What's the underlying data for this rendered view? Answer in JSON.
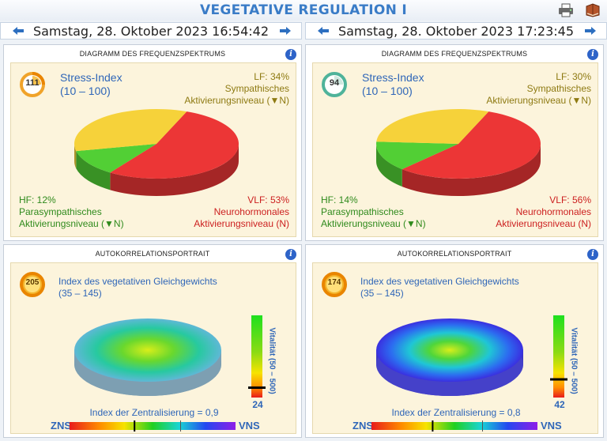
{
  "app": {
    "title": "VEGETATIVE REGULATION I",
    "printer_icon": "printer-icon",
    "book_icon": "book-icon"
  },
  "sessions": [
    {
      "datetime": "Samstag, 28. Oktober 2023 16:54:42"
    },
    {
      "datetime": "Samstag, 28. Oktober 2023 17:23:45"
    }
  ],
  "spectrum": [
    {
      "panel_title": "DIAGRAMM DES FREQUENZSPEKTRUMS",
      "stress_value": "111",
      "stress_label": "Stress-Index",
      "stress_range": "(10 – 100)",
      "lf_pct": "LF: 34%",
      "lf_l1": "Sympathisches",
      "lf_l2": "Aktivierungsniveau (▼N)",
      "hf_pct": "HF: 12%",
      "hf_l1": "Parasympathisches",
      "hf_l2": "Aktivierungsniveau (▼N)",
      "vlf_pct": "VLF: 53%",
      "vlf_l1": "Neurohormonales",
      "vlf_l2": "Aktivierungsniveau (N)",
      "chart_data": {
        "type": "pie",
        "categories": [
          "LF",
          "HF",
          "VLF"
        ],
        "values": [
          34,
          12,
          53
        ],
        "colors": [
          "#f6d23a",
          "#52cf35",
          "#ec3636"
        ]
      }
    },
    {
      "panel_title": "DIAGRAMM DES FREQUENZSPEKTRUMS",
      "stress_value": "94",
      "stress_label": "Stress-Index",
      "stress_range": "(10 – 100)",
      "lf_pct": "LF: 30%",
      "lf_l1": "Sympathisches",
      "lf_l2": "Aktivierungsniveau (▼N)",
      "hf_pct": "HF: 14%",
      "hf_l1": "Parasympathisches",
      "hf_l2": "Aktivierungsniveau (▼N)",
      "vlf_pct": "VLF: 56%",
      "vlf_l1": "Neurohormonales",
      "vlf_l2": "Aktivierungsniveau (N)",
      "chart_data": {
        "type": "pie",
        "categories": [
          "LF",
          "HF",
          "VLF"
        ],
        "values": [
          30,
          14,
          56
        ],
        "colors": [
          "#f6d23a",
          "#52cf35",
          "#ec3636"
        ]
      }
    }
  ],
  "autocorrelation": [
    {
      "panel_title": "AUTOKORRELATIONSPORTRAIT",
      "index_value": "205",
      "index_label": "Index des vegetativen Gleichgewichts",
      "index_range": "(35 – 145)",
      "vitality_label": "Vitalität (50 – 500)",
      "vitality_value": "24",
      "central_label": "Index der Zentralisierung = 0,9",
      "zns": "ZNS",
      "vns": "VNS",
      "central_level": 0.9
    },
    {
      "panel_title": "AUTOKORRELATIONSPORTRAIT",
      "index_value": "174",
      "index_label": "Index des vegetativen Gleichgewichts",
      "index_range": "(35 – 145)",
      "vitality_label": "Vitalität (50 – 500)",
      "vitality_value": "42",
      "central_label": "Index der Zentralisierung = 0,8",
      "zns": "ZNS",
      "vns": "VNS",
      "central_level": 0.8
    }
  ]
}
